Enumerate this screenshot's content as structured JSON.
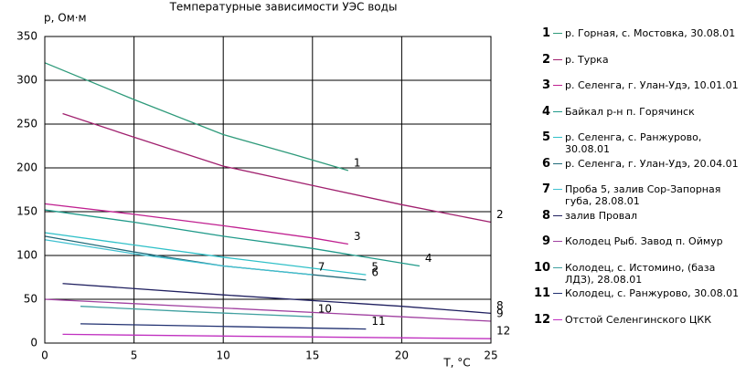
{
  "chart_data": {
    "type": "line",
    "title": "Температурные зависимости УЭС воды",
    "y_label": "р, Ом·м",
    "x_label": "T, °C",
    "xlim": [
      0,
      25
    ],
    "xticks": [
      0,
      5,
      10,
      15,
      20,
      25
    ],
    "ylim": [
      0,
      350
    ],
    "yticks": [
      0,
      50,
      100,
      150,
      200,
      250,
      300,
      350
    ],
    "grid": true,
    "series": [
      {
        "label": "1",
        "name": "р. Горная, с. Мостовка, 30.08.01",
        "color": "#2e9a7a",
        "x": [
          0,
          5,
          10,
          14,
          17
        ],
        "values": [
          320,
          278,
          238,
          215,
          197
        ]
      },
      {
        "label": "2",
        "name": "р. Турка",
        "color": "#a0206e",
        "x": [
          1,
          5,
          10,
          15,
          20,
          25
        ],
        "values": [
          262,
          235,
          202,
          180,
          158,
          138
        ]
      },
      {
        "label": "3",
        "name": "р. Селенга, г. Улан-Удэ, 10.01.01",
        "color": "#c02090",
        "x": [
          0,
          5,
          10,
          15,
          17
        ],
        "values": [
          159,
          147,
          134,
          120,
          113
        ]
      },
      {
        "label": "4",
        "name": "Байкал р-н п. Горячинск",
        "color": "#209a8a",
        "x": [
          0,
          5,
          10,
          15,
          21
        ],
        "values": [
          152,
          138,
          122,
          108,
          88
        ]
      },
      {
        "label": "5",
        "name": "р. Селенга, с. Ранжурово, 30.08.01",
        "color": "#30c0c8",
        "x": [
          0,
          5,
          10,
          18
        ],
        "values": [
          126,
          112,
          98,
          78
        ]
      },
      {
        "label": "6",
        "name": "р. Селенга, г. Улан-Удэ, 20.04.01",
        "color": "#206a7a",
        "x": [
          0,
          5,
          10,
          18
        ],
        "values": [
          122,
          104,
          88,
          72
        ]
      },
      {
        "label": "7",
        "name": "Проба 5, залив Сор-Запорная губа, 28.08.01",
        "color": "#40c0d0",
        "x": [
          0,
          5,
          10,
          15
        ],
        "values": [
          118,
          102,
          88,
          78
        ]
      },
      {
        "label": "8",
        "name": "залив Провал",
        "color": "#202060",
        "x": [
          1,
          10,
          20,
          25
        ],
        "values": [
          68,
          55,
          42,
          34
        ]
      },
      {
        "label": "9",
        "name": "Колодец Рыб. Завод п. Оймур",
        "color": "#a040a0",
        "x": [
          0,
          10,
          20,
          25
        ],
        "values": [
          50,
          40,
          30,
          25
        ]
      },
      {
        "label": "10",
        "name": "Колодец, с. Истомино, (база ЛДЗ), 28.08.01",
        "color": "#40a0a0",
        "x": [
          2,
          8,
          15
        ],
        "values": [
          42,
          36,
          30
        ]
      },
      {
        "label": "11",
        "name": "Колодец, с. Ранжурово, 30.08.01",
        "color": "#203070",
        "x": [
          2,
          10,
          18
        ],
        "values": [
          22,
          19,
          16
        ]
      },
      {
        "label": "12",
        "name": "Отстой Селенгинского ЦКК",
        "color": "#c030c0",
        "x": [
          1,
          10,
          25
        ],
        "values": [
          10,
          8,
          5
        ]
      }
    ]
  }
}
